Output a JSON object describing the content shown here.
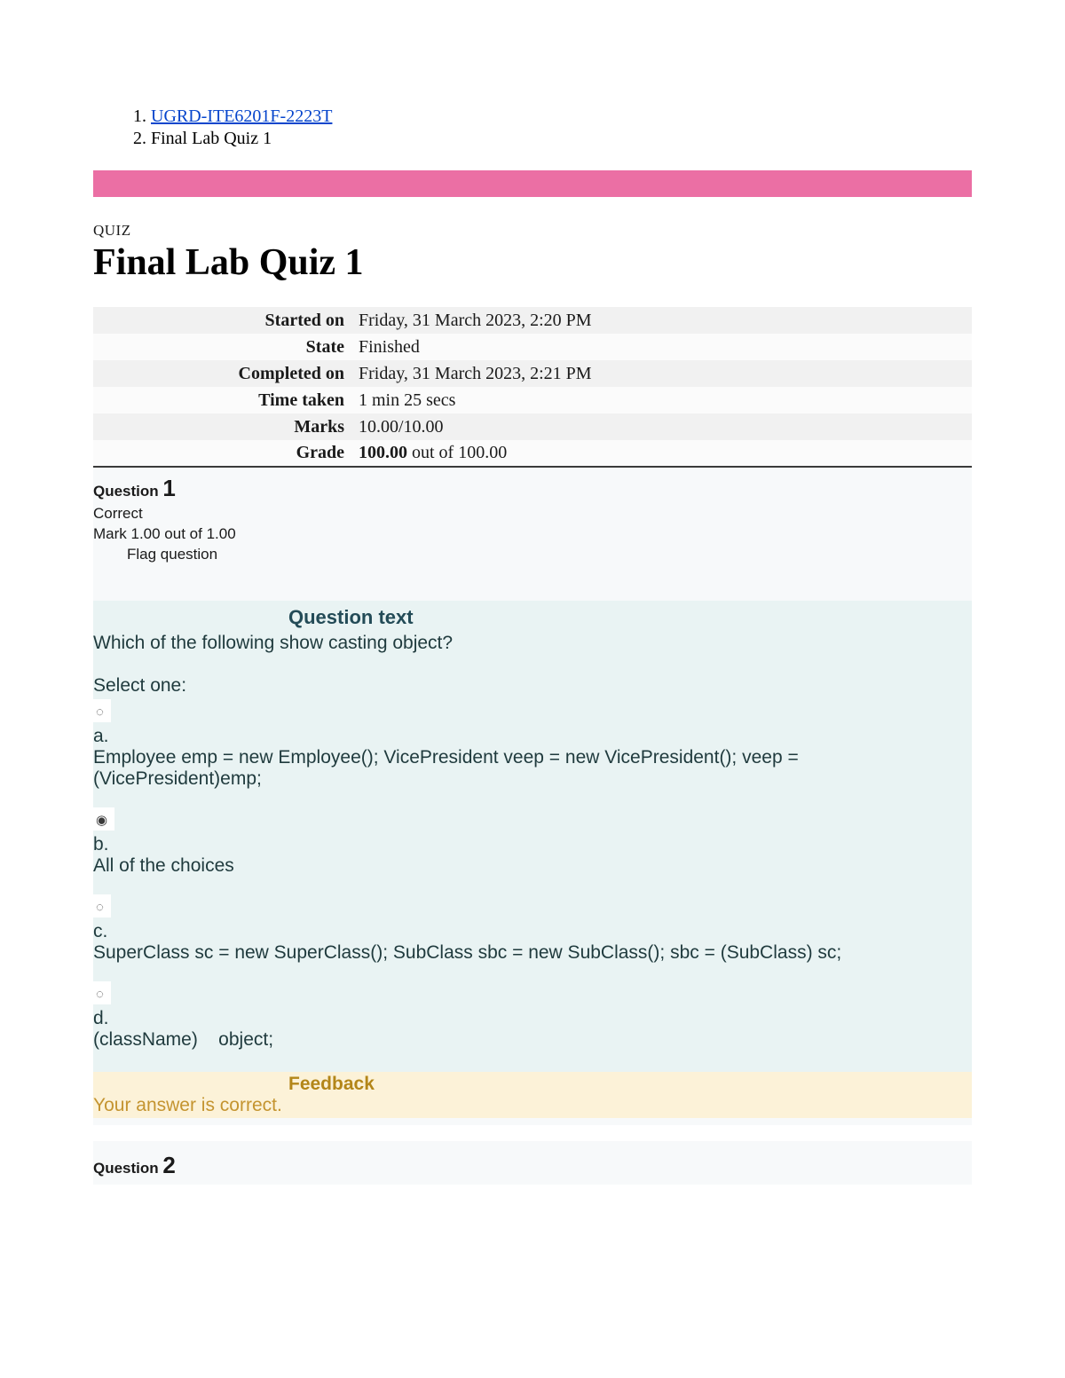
{
  "breadcrumb": {
    "link_text": "UGRD-ITE6201F-2223T",
    "current": "Final Lab Quiz 1"
  },
  "quiz": {
    "label": "QUIZ",
    "title": "Final Lab Quiz 1"
  },
  "summary": {
    "rows": [
      {
        "label": "Started on",
        "value": "Friday, 31 March 2023, 2:20 PM"
      },
      {
        "label": "State",
        "value": "Finished"
      },
      {
        "label": "Completed on",
        "value": "Friday, 31 March 2023, 2:21 PM"
      },
      {
        "label": "Time taken",
        "value": "1 min 25 secs"
      },
      {
        "label": "Marks",
        "value": "10.00/10.00"
      }
    ],
    "grade_label": "Grade",
    "grade_value_bold": "100.00",
    "grade_value_rest": " out of 100.00"
  },
  "q1": {
    "heading_prefix": "Question ",
    "number": "1",
    "correct": "Correct",
    "mark": "Mark 1.00 out of 1.00",
    "flag": "Flag question",
    "subhead": "Question text",
    "prompt": "Which of the following show casting object?",
    "select_one": "Select one:",
    "choices": {
      "a_label": "a.",
      "a_text": "Employee emp = new Employee(); VicePresident veep = new VicePresident(); veep = (VicePresident)emp;",
      "b_label": "b.",
      "b_text": "All of the choices",
      "c_label": "c.",
      "c_text": "SuperClass sc = new SuperClass(); SubClass sbc = new SubClass(); sbc = (SubClass) sc;",
      "d_label": "d.",
      "d_text": "(className)    object;"
    },
    "feedback_head": "Feedback",
    "feedback_text": "Your answer is correct."
  },
  "q2": {
    "heading_prefix": "Question ",
    "number": "2"
  },
  "glyphs": {
    "radio_empty": "◌",
    "radio_selected": "◉"
  },
  "colors": {
    "pink_bar": "#eb6fa4",
    "link": "#0645cc",
    "question_bg": "#e9f3f3",
    "feedback_bg": "#fcf2d8",
    "feedback_text": "#c49430"
  }
}
